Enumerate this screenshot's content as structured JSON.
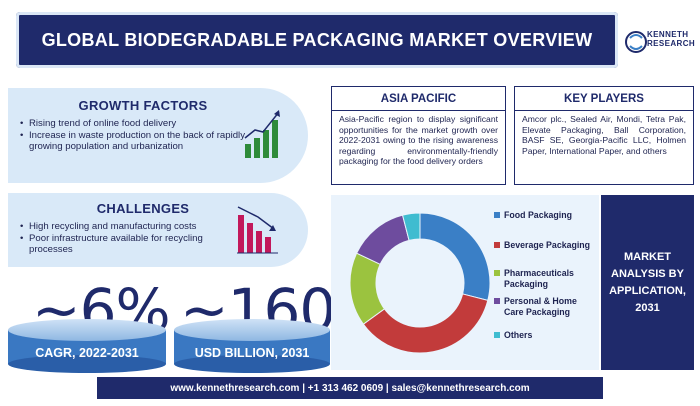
{
  "title": "GLOBAL BIODEGRADABLE PACKAGING MARKET OVERVIEW",
  "logo": {
    "line1": "KENNETH",
    "line2": "RESEARCH"
  },
  "growth": {
    "heading": "GROWTH FACTORS",
    "items": [
      "Rising trend of online food delivery",
      "Increase in waste production on the back of rapidly growing population and urbanization"
    ]
  },
  "challenges": {
    "heading": "CHALLENGES",
    "items": [
      "High recycling and manufacturing costs",
      "Poor infrastructure available for recycling processes"
    ]
  },
  "stats": {
    "cagr_value": "~6%",
    "cagr_label": "CAGR, 2022-2031",
    "size_value": "~160",
    "size_label": "USD BILLION, 2031"
  },
  "asia": {
    "heading": "ASIA PACIFIC",
    "text": "Asia-Pacific region to display significant opportunities for the market growth over 2022-2031 owing to the rising awareness regarding environmentally-friendly packaging for the food delivery orders"
  },
  "key_players": {
    "heading": "KEY PLAYERS",
    "text": "Amcor plc., Sealed Air, Mondi, Tetra Pak, Elevate Packaging, Ball Corporation, BASF SE, Georgia-Pacific LLC, Holmen Paper, International Paper, and others"
  },
  "market_panel": "MARKET ANALYSIS BY APPLICATION, 2031",
  "footer": "www.kennethresearch.com | +1 313 462 0609 | sales@kennethresearch.com",
  "colors": {
    "navy": "#1f2a6b",
    "light_blue": "#d9e9f8",
    "chart_bg": "#eaf3fc",
    "growth_bars": "#2e8b3a",
    "challenge_bars": "#c2185b"
  },
  "icons": [
    "growth-chart-icon",
    "decline-chart-icon"
  ],
  "chart_data": {
    "type": "pie",
    "donut": true,
    "categories": [
      "Food Packaging",
      "Beverage Packaging",
      "Pharmaceuticals Packaging",
      "Personal & Home Care Packaging",
      "Others"
    ],
    "values": [
      29,
      36,
      17,
      14,
      4
    ],
    "colors": [
      "#3a7fc6",
      "#c23b3b",
      "#9bc33f",
      "#6e4c9e",
      "#3fbcd0"
    ],
    "legend_position": "right"
  }
}
